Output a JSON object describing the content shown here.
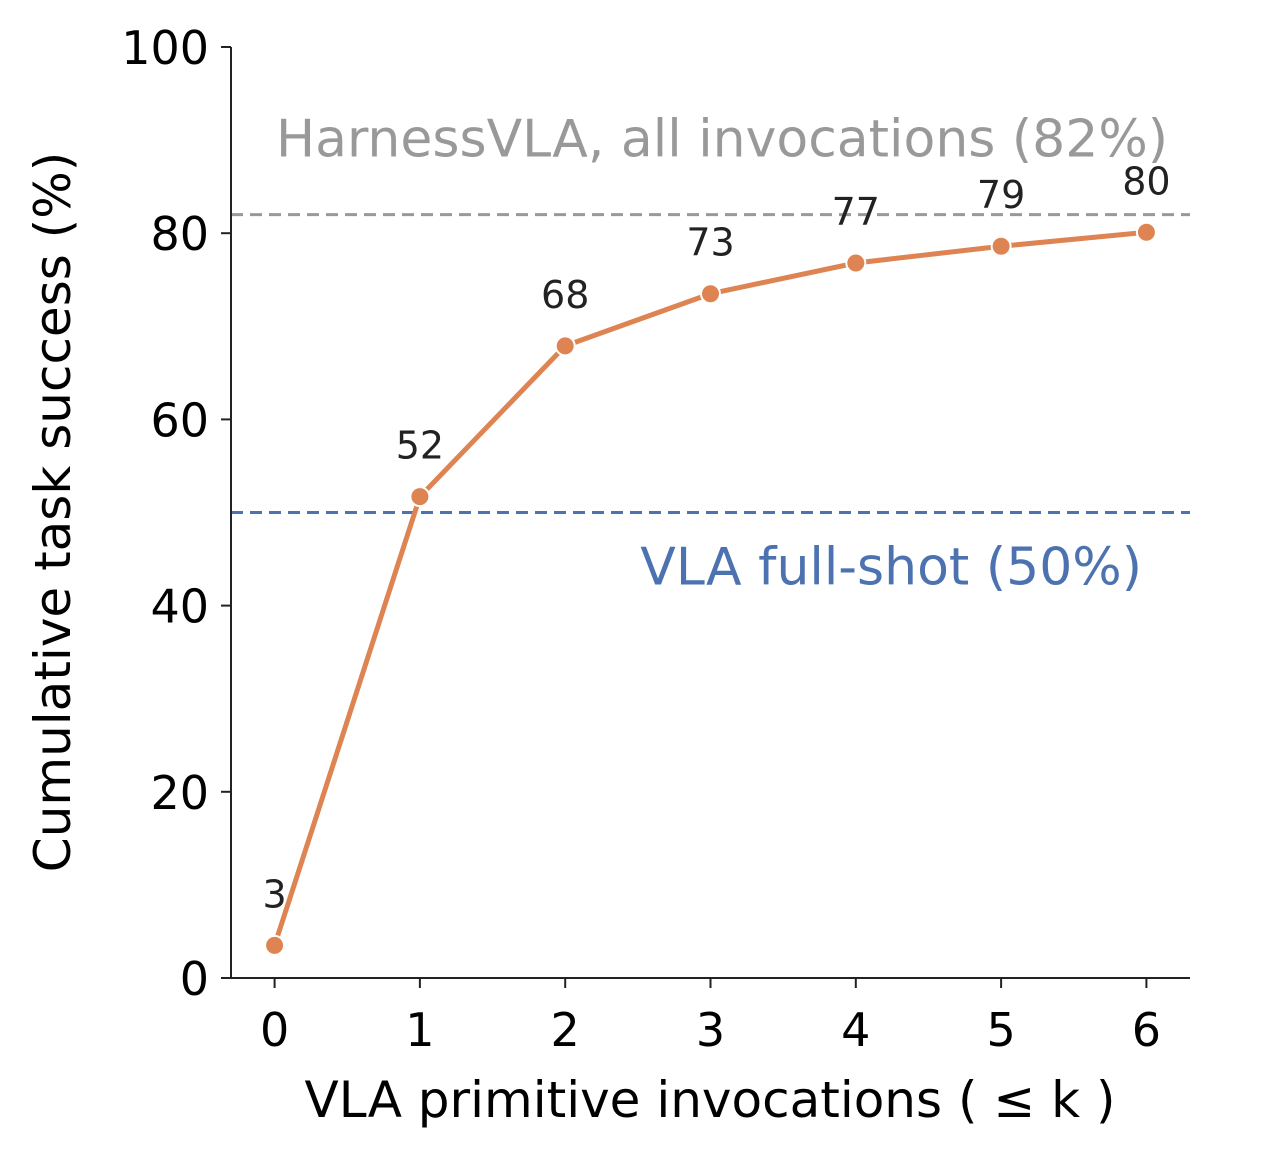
{
  "chart_data": {
    "type": "line",
    "xlabel": "VLA primitive invocations ( ≤ k )",
    "ylabel": "Cumulative task success (%)",
    "x": [
      0,
      1,
      2,
      3,
      4,
      5,
      6
    ],
    "xlim": [
      -0.3,
      6.3
    ],
    "ylim": [
      0,
      100
    ],
    "x_ticks": [
      0,
      1,
      2,
      3,
      4,
      5,
      6
    ],
    "y_ticks": [
      0,
      20,
      40,
      60,
      80,
      100
    ],
    "series": [
      {
        "values": [
          3.5,
          51.7,
          67.9,
          73.5,
          76.8,
          78.6,
          80.1
        ],
        "data_labels": [
          "3",
          "52",
          "68",
          "73",
          "77",
          "79",
          "80"
        ],
        "color": "#dd8452",
        "marker": "circle"
      }
    ],
    "reference_lines": [
      {
        "value": 82,
        "label": "HarnessVLA, all invocations (82%)",
        "color": "#999999",
        "style": "dashed"
      },
      {
        "value": 50,
        "label": "VLA full-shot (50%)",
        "color": "#4c72b0",
        "style": "dashed"
      }
    ],
    "grid": false,
    "spines": "left-bottom"
  }
}
